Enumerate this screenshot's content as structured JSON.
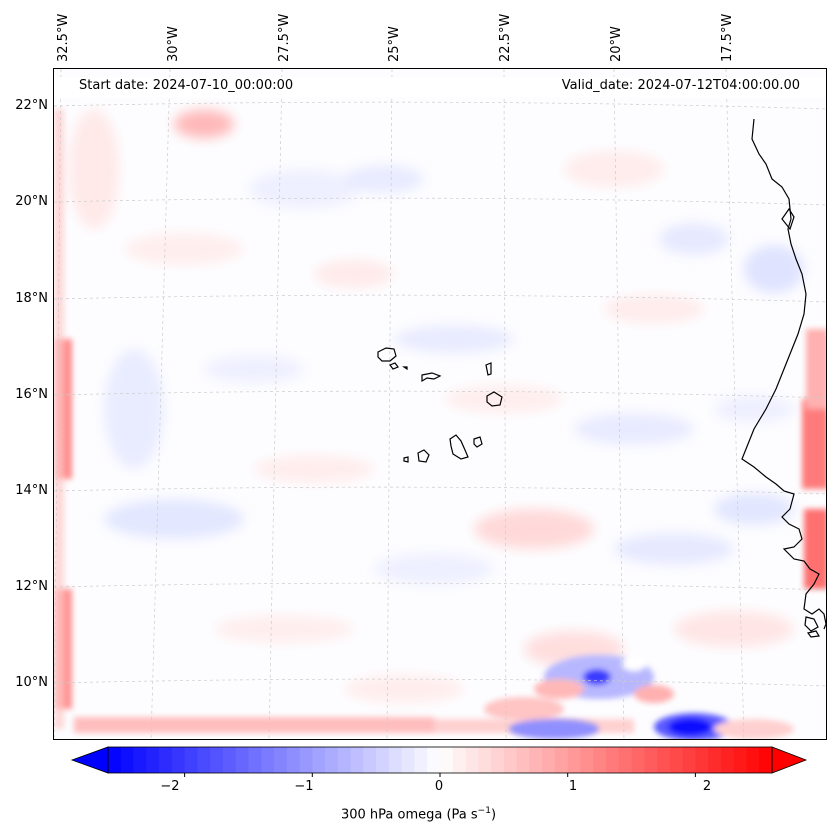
{
  "map": {
    "start_date": "Start date: 2024-07-10_00:00:00",
    "valid_date": "Valid_date: 2024-07-12T04:00:00.00",
    "lon_labels": [
      "32.5°W",
      "30°W",
      "27.5°W",
      "25°W",
      "22.5°W",
      "20°W",
      "17.5°W"
    ],
    "lat_labels": [
      "22°N",
      "20°N",
      "18°N",
      "16°N",
      "14°N",
      "12°N",
      "10°N"
    ],
    "extent": {
      "lon_min": -32.8,
      "lon_max": -15.5,
      "lat_min": 8.8,
      "lat_max": 22.8
    },
    "coastline_color": "#000000",
    "gridline_color": "#cccccc"
  },
  "colorbar": {
    "label_main": "300 hPa omega (Pa s",
    "label_sup": "−1",
    "label_end": ")",
    "ticks": [
      "−2",
      "−1",
      "0",
      "1",
      "2"
    ],
    "range": [
      -2.6,
      2.6
    ],
    "colormap": "bwr",
    "low_color": "#0000ff",
    "mid_color": "#ffffff",
    "high_color": "#ff0000"
  }
}
